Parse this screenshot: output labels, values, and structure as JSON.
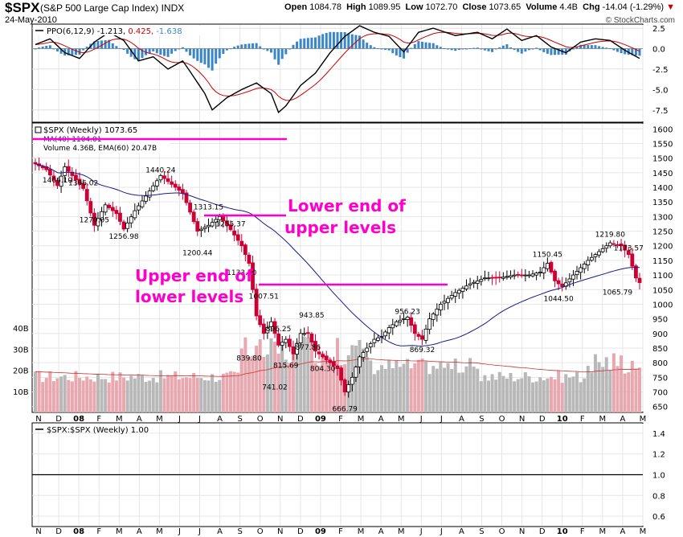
{
  "header": {
    "symbol": "$SPX",
    "name_prefix": "(S&P 500 Large Cap Index)",
    "exchange": "INDX",
    "date": "24-May-2010",
    "open_label": "Open",
    "open": "1084.78",
    "high_label": "High",
    "high": "1089.95",
    "low_label": "Low",
    "low": "1072.70",
    "close_label": "Close",
    "close": "1073.65",
    "volume_label": "Volume",
    "volume": "4.4B",
    "chg_label": "Chg",
    "chg": "-14.04 (-1.29%)",
    "chg_arrow": "▼",
    "credit": "© StockCharts.com"
  },
  "colors": {
    "up": "#000000",
    "down": "#cc0033",
    "ma": "#1a1a8c",
    "ppo": "#000000",
    "signal": "#cc0000",
    "hist": "#3a86c8",
    "vol_up": "#b8b8b8",
    "vol_down": "#e8a8b0",
    "annot": "#ff00cc",
    "ema": "#cc3333"
  },
  "chart_data": [
    {
      "type": "bar",
      "name": "ppo",
      "legend": {
        "label": "PPO(6,12,9)",
        "ppo": "-1.213",
        "signal": "0.425",
        "hist": "-1.638"
      },
      "y_ticks": [
        "2.5",
        "0.0",
        "-2.5",
        "-5.0",
        "-7.5"
      ],
      "ylim": [
        -9,
        3
      ],
      "x_months": [
        "N",
        "D",
        "08",
        "F",
        "M",
        "A",
        "M",
        "J",
        "J",
        "A",
        "S",
        "O",
        "N",
        "D",
        "09",
        "F",
        "M",
        "A",
        "M",
        "J",
        "J",
        "A",
        "S",
        "O",
        "N",
        "D",
        "10",
        "F",
        "M",
        "A",
        "M"
      ]
    },
    {
      "type": "candlestick",
      "name": "price",
      "legend": {
        "main": "$SPX (Weekly) 1073.65",
        "ma": "MA(40) 1104.01",
        "volume": "Volume 4.36B, EMA(60) 20.47B"
      },
      "y_ticks": [
        "1600",
        "1550",
        "1500",
        "1450",
        "1400",
        "1350",
        "1300",
        "1250",
        "1200",
        "1150",
        "1100",
        "1050",
        "1000",
        "950",
        "900",
        "850",
        "800",
        "750",
        "700",
        "650"
      ],
      "vol_ticks": [
        "40B",
        "30B",
        "20B",
        "10B"
      ],
      "ylim": [
        630,
        1620
      ],
      "x_months": [
        "N",
        "D",
        "08",
        "F",
        "M",
        "A",
        "M",
        "J",
        "J",
        "A",
        "S",
        "O",
        "N",
        "D",
        "09",
        "F",
        "M",
        "A",
        "M",
        "J",
        "J",
        "A",
        "S",
        "O",
        "N",
        "D",
        "10",
        "F",
        "M",
        "A",
        "M"
      ],
      "price_labels": [
        {
          "t": "1406.10",
          "w": 6
        },
        {
          "t": "1396.02",
          "w": 13
        },
        {
          "t": "1270.05",
          "w": 16
        },
        {
          "t": "1256.98",
          "w": 24
        },
        {
          "t": "1440.24",
          "w": 34
        },
        {
          "t": "1313.15",
          "w": 47
        },
        {
          "t": "1255.37",
          "w": 53
        },
        {
          "t": "1200.44",
          "w": 44
        },
        {
          "t": "1133.50",
          "w": 56
        },
        {
          "t": "1007.51",
          "w": 62
        },
        {
          "t": "839.80",
          "w": 58
        },
        {
          "t": "896.25",
          "w": 66
        },
        {
          "t": "877.86",
          "w": 74
        },
        {
          "t": "815.69",
          "w": 68
        },
        {
          "t": "741.02",
          "w": 65
        },
        {
          "t": "804.30",
          "w": 78
        },
        {
          "t": "666.79",
          "w": 84
        },
        {
          "t": "943.85",
          "w": 75
        },
        {
          "t": "956.23",
          "w": 101
        },
        {
          "t": "869.32",
          "w": 105
        },
        {
          "t": "1150.45",
          "w": 139
        },
        {
          "t": "1044.50",
          "w": 142
        },
        {
          "t": "1219.80",
          "w": 156
        },
        {
          "t": "1173.57",
          "w": 161
        },
        {
          "t": "1065.79",
          "w": 158
        }
      ],
      "annotations": [
        "Lower end of",
        "upper levels",
        "Upper end of",
        "lower levels"
      ]
    },
    {
      "type": "line",
      "name": "ratio",
      "legend": "$SPX:$SPX (Weekly) 1.00",
      "y_ticks": [
        "1.4",
        "1.2",
        "1.0",
        "0.8",
        "0.6"
      ],
      "ylim": [
        0.5,
        1.5
      ],
      "values": [
        1.0
      ],
      "x_months": [
        "N",
        "D",
        "08",
        "F",
        "M",
        "A",
        "M",
        "J",
        "J",
        "A",
        "S",
        "O",
        "N",
        "D",
        "09",
        "F",
        "M",
        "A",
        "M",
        "J",
        "J",
        "A",
        "S",
        "O",
        "N",
        "D",
        "10",
        "F",
        "M",
        "A",
        "M"
      ]
    }
  ]
}
